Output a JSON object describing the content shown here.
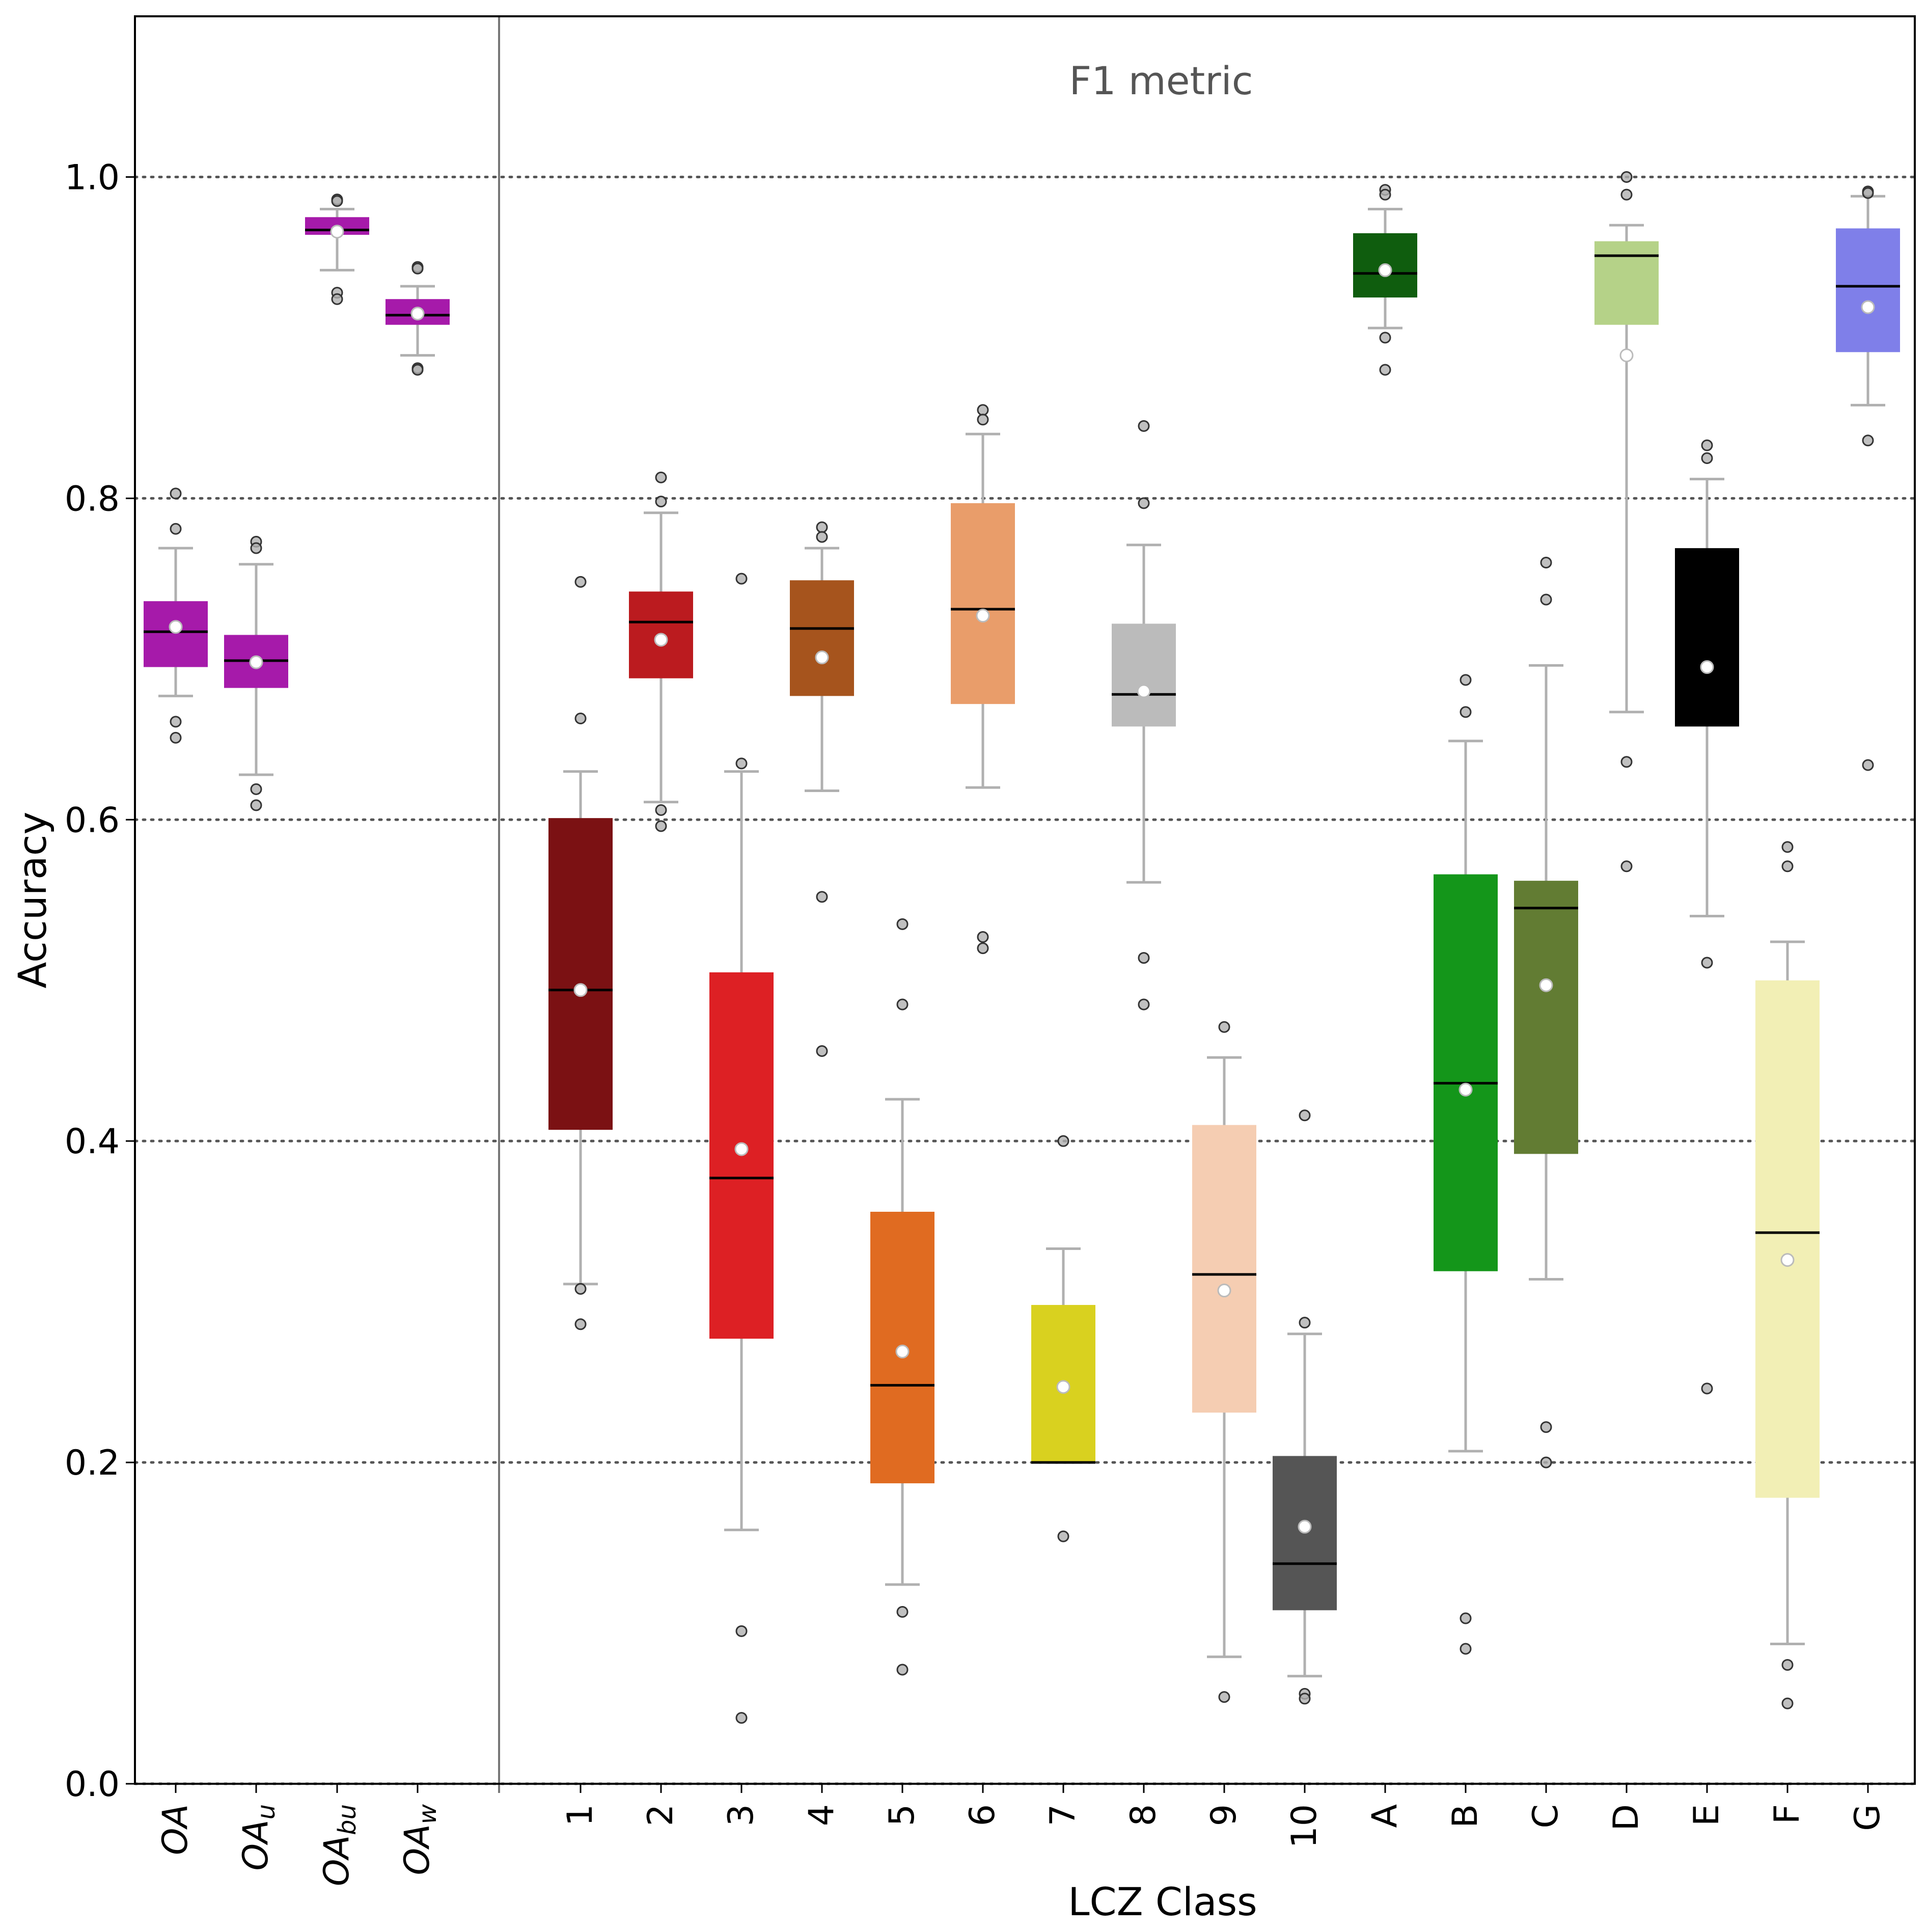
{
  "chart_data": {
    "type": "box",
    "annotation": "F1 metric",
    "xlabel": "LCZ Class",
    "ylabel": "Accuracy",
    "ylim": [
      0,
      1.1
    ],
    "yticks": [
      "0.0",
      "0.2",
      "0.4",
      "0.6",
      "0.8",
      "1.0"
    ],
    "grid": "horizontal dotted at y ticks",
    "overall_groups": [
      {
        "label": "OA",
        "sub": "",
        "color": "#A61AAA",
        "q1": 0.695,
        "median": 0.717,
        "q3": 0.736,
        "mean": 0.72,
        "whisker_low": 0.677,
        "whisker_high": 0.769,
        "outliers": [
          0.803,
          0.781,
          0.661,
          0.651
        ]
      },
      {
        "label": "OA",
        "sub": "u",
        "color": "#A61AAA",
        "q1": 0.682,
        "median": 0.699,
        "q3": 0.715,
        "mean": 0.698,
        "whisker_low": 0.628,
        "whisker_high": 0.759,
        "outliers": [
          0.773,
          0.769,
          0.619,
          0.609
        ]
      },
      {
        "label": "OA",
        "sub": "bu",
        "color": "#A61AAA",
        "q1": 0.964,
        "median": 0.967,
        "q3": 0.975,
        "mean": 0.966,
        "whisker_low": 0.942,
        "whisker_high": 0.98,
        "outliers": [
          0.986,
          0.985,
          0.928,
          0.924
        ]
      },
      {
        "label": "OA",
        "sub": "w",
        "color": "#A61AAA",
        "q1": 0.908,
        "median": 0.914,
        "q3": 0.924,
        "mean": 0.915,
        "whisker_low": 0.889,
        "whisker_high": 0.932,
        "outliers": [
          0.944,
          0.943,
          0.881,
          0.88
        ]
      }
    ],
    "class_groups": [
      {
        "label": "1",
        "color": "#7B1113",
        "q1": 0.407,
        "median": 0.494,
        "q3": 0.601,
        "mean": 0.494,
        "whisker_low": 0.311,
        "whisker_high": 0.63,
        "outliers": [
          0.748,
          0.663,
          0.308,
          0.286
        ]
      },
      {
        "label": "2",
        "color": "#BB1B1F",
        "q1": 0.688,
        "median": 0.723,
        "q3": 0.742,
        "mean": 0.712,
        "whisker_low": 0.611,
        "whisker_high": 0.791,
        "outliers": [
          0.813,
          0.798,
          0.606,
          0.596
        ]
      },
      {
        "label": "3",
        "color": "#DD2024",
        "q1": 0.277,
        "median": 0.377,
        "q3": 0.505,
        "mean": 0.395,
        "whisker_low": 0.158,
        "whisker_high": 0.63,
        "outliers": [
          0.75,
          0.635,
          0.095,
          0.041
        ]
      },
      {
        "label": "4",
        "color": "#A6541D",
        "q1": 0.677,
        "median": 0.719,
        "q3": 0.749,
        "mean": 0.701,
        "whisker_low": 0.618,
        "whisker_high": 0.769,
        "outliers": [
          0.782,
          0.776,
          0.552,
          0.456
        ]
      },
      {
        "label": "5",
        "color": "#E06B21",
        "q1": 0.187,
        "median": 0.248,
        "q3": 0.356,
        "mean": 0.269,
        "whisker_low": 0.124,
        "whisker_high": 0.426,
        "outliers": [
          0.535,
          0.485,
          0.107,
          0.071
        ]
      },
      {
        "label": "6",
        "color": "#E99D6A",
        "q1": 0.672,
        "median": 0.731,
        "q3": 0.797,
        "mean": 0.727,
        "whisker_low": 0.62,
        "whisker_high": 0.84,
        "outliers": [
          0.855,
          0.849,
          0.527,
          0.52
        ]
      },
      {
        "label": "7",
        "color": "#D9D11F",
        "q1": 0.2,
        "median": 0.2,
        "q3": 0.298,
        "mean": 0.247,
        "whisker_low": 0.2,
        "whisker_high": 0.333,
        "outliers": [
          0.4,
          0.154
        ]
      },
      {
        "label": "8",
        "color": "#BBBBBB",
        "q1": 0.658,
        "median": 0.678,
        "q3": 0.722,
        "mean": 0.68,
        "whisker_low": 0.561,
        "whisker_high": 0.771,
        "outliers": [
          0.845,
          0.797,
          0.514,
          0.485
        ]
      },
      {
        "label": "9",
        "color": "#F5CDB2",
        "q1": 0.231,
        "median": 0.317,
        "q3": 0.41,
        "mean": 0.307,
        "whisker_low": 0.079,
        "whisker_high": 0.452,
        "outliers": [
          0.471,
          0.054
        ]
      },
      {
        "label": "10",
        "color": "#555555",
        "q1": 0.108,
        "median": 0.137,
        "q3": 0.204,
        "mean": 0.16,
        "whisker_low": 0.067,
        "whisker_high": 0.28,
        "outliers": [
          0.416,
          0.287,
          0.056,
          0.053
        ]
      },
      {
        "label": "A",
        "color": "#0F5D0E",
        "q1": 0.925,
        "median": 0.94,
        "q3": 0.965,
        "mean": 0.942,
        "whisker_low": 0.906,
        "whisker_high": 0.98,
        "outliers": [
          0.992,
          0.989,
          0.9,
          0.88
        ]
      },
      {
        "label": "B",
        "color": "#14961A",
        "q1": 0.319,
        "median": 0.436,
        "q3": 0.566,
        "mean": 0.432,
        "whisker_low": 0.207,
        "whisker_high": 0.649,
        "outliers": [
          0.687,
          0.667,
          0.103,
          0.084
        ]
      },
      {
        "label": "C",
        "color": "#627C33",
        "q1": 0.392,
        "median": 0.545,
        "q3": 0.562,
        "mean": 0.497,
        "whisker_low": 0.314,
        "whisker_high": 0.696,
        "outliers": [
          0.76,
          0.737,
          0.222,
          0.2
        ]
      },
      {
        "label": "D",
        "color": "#B5D288",
        "q1": 0.908,
        "median": 0.951,
        "q3": 0.96,
        "mean": 0.889,
        "whisker_low": 0.667,
        "whisker_high": 0.97,
        "outliers": [
          1.0,
          0.989,
          0.636,
          0.571
        ]
      },
      {
        "label": "E",
        "color": "#000000",
        "q1": 0.658,
        "median": 0.724,
        "q3": 0.769,
        "mean": 0.695,
        "whisker_low": 0.54,
        "whisker_high": 0.812,
        "outliers": [
          0.833,
          0.825,
          0.511,
          0.246
        ]
      },
      {
        "label": "F",
        "color": "#F2EFB5",
        "q1": 0.178,
        "median": 0.343,
        "q3": 0.5,
        "mean": 0.326,
        "whisker_low": 0.087,
        "whisker_high": 0.524,
        "outliers": [
          0.583,
          0.571,
          0.074,
          0.05
        ]
      },
      {
        "label": "G",
        "color": "#7F7FE9",
        "q1": 0.891,
        "median": 0.932,
        "q3": 0.968,
        "mean": 0.919,
        "whisker_low": 0.858,
        "whisker_high": 0.988,
        "outliers": [
          0.991,
          0.99,
          0.836,
          0.634
        ]
      }
    ]
  }
}
